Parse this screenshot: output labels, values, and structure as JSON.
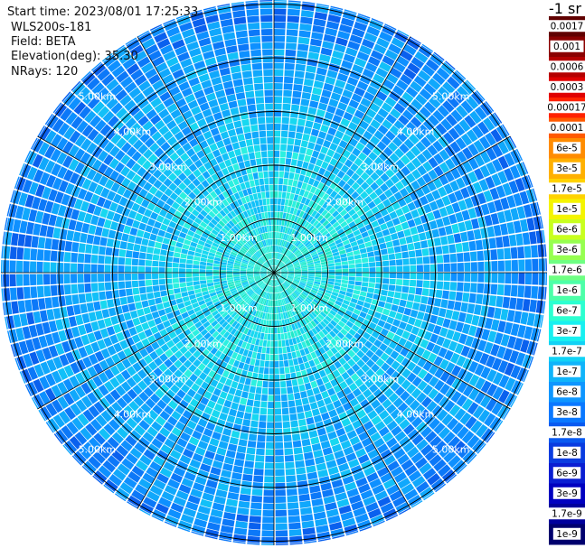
{
  "header": {
    "start_time": "Start time: 2023/08/01 17:25:33",
    "instrument": "WLS200s-181",
    "field": "Field: BETA",
    "elevation": "Elevation(deg): 35.30",
    "nrays": "NRays: 120"
  },
  "colorbar": {
    "unit": "-1 sr",
    "labels": [
      "0.0017",
      "0.001",
      "0.0006",
      "0.0003",
      "0.00017",
      "0.0001",
      "6e-5",
      "3e-5",
      "1.7e-5",
      "1e-5",
      "6e-6",
      "3e-6",
      "1.7e-6",
      "1e-6",
      "6e-7",
      "3e-7",
      "1.7e-7",
      "1e-7",
      "6e-8",
      "3e-8",
      "1.7e-8",
      "1e-8",
      "6e-9",
      "3e-9",
      "1.7e-9",
      "1e-9"
    ],
    "colors": [
      "#600000",
      "#8a0000",
      "#b40000",
      "#e00000",
      "#ff2200",
      "#ff5a00",
      "#ff8c00",
      "#ffb000",
      "#ffd200",
      "#f4f400",
      "#c8ff1e",
      "#96ff50",
      "#6eff82",
      "#4cffa8",
      "#2cffd0",
      "#18f0f0",
      "#12d2f5",
      "#10b4fa",
      "#0e96ff",
      "#0a78ff",
      "#0a5af0",
      "#0a3ce0",
      "#0a1ed2",
      "#0000c0",
      "#00009c",
      "#00006e"
    ]
  },
  "range_rings": {
    "labels": [
      "1.00km",
      "2.00km",
      "3.00km",
      "4.00km",
      "5.00km"
    ]
  },
  "plot": {
    "n_rays": 120
  }
}
